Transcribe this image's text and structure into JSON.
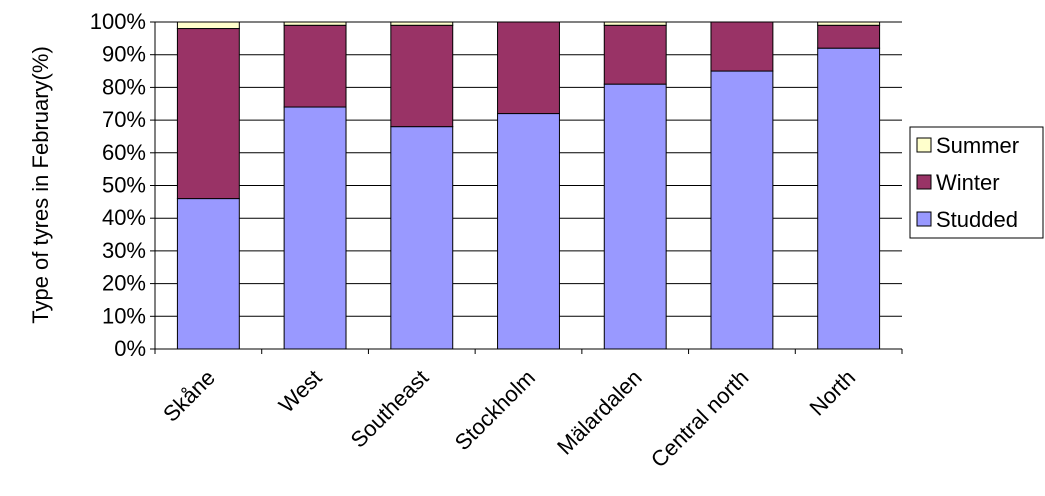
{
  "chart_data": {
    "type": "bar",
    "stacked": true,
    "title": "",
    "xlabel": "",
    "ylabel": "Type of tyres in February(%)",
    "ylim": [
      0,
      100
    ],
    "y_ticks": [
      "0%",
      "10%",
      "20%",
      "30%",
      "40%",
      "50%",
      "60%",
      "70%",
      "80%",
      "90%",
      "100%"
    ],
    "grid": true,
    "legend_position": "right",
    "categories": [
      "Skåne",
      "West",
      "Southeast",
      "Stockholm",
      "Mälardalen",
      "Central north",
      "North"
    ],
    "series": [
      {
        "name": "Studded",
        "color": "#9999ff",
        "values": [
          46,
          74,
          68,
          72,
          81,
          85,
          92
        ]
      },
      {
        "name": "Winter",
        "color": "#993366",
        "values": [
          52,
          25,
          31,
          28,
          18,
          15,
          7
        ]
      },
      {
        "name": "Summer",
        "color": "#ffffcc",
        "values": [
          2,
          1,
          1,
          0,
          1,
          0,
          1
        ]
      }
    ],
    "legend": [
      {
        "label": "Summer",
        "color": "#ffffcc"
      },
      {
        "label": "Winter",
        "color": "#993366"
      },
      {
        "label": "Studded",
        "color": "#9999ff"
      }
    ]
  }
}
